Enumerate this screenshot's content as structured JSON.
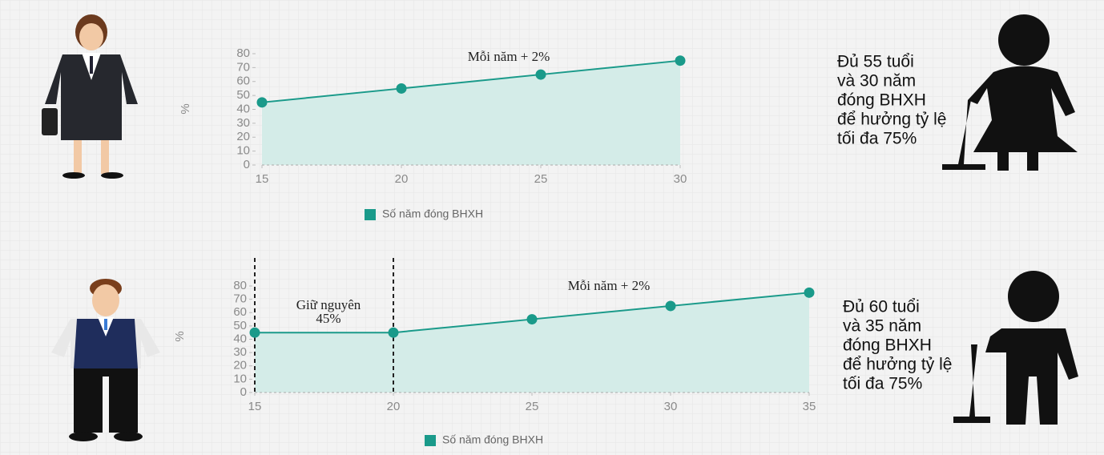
{
  "chart_data": [
    {
      "type": "line",
      "y_label": "%",
      "legend": "Số năm đóng BHXH",
      "color": "#1a9a8a",
      "x": [
        15,
        20,
        25,
        30
      ],
      "values": [
        45,
        55,
        65,
        75
      ],
      "xlim": [
        15,
        30
      ],
      "xticks": [
        15,
        20,
        25,
        30
      ],
      "ylim": [
        0,
        80
      ],
      "yticks": [
        0,
        10,
        20,
        30,
        40,
        50,
        60,
        70,
        80
      ],
      "annotations": [
        [
          "Mỗi năm + 2%"
        ]
      ],
      "side_text": [
        "Đủ 55 tuổi",
        "và 30 năm",
        "đóng BHXH",
        "để hưởng tỷ lệ",
        "tối đa 75%"
      ]
    },
    {
      "type": "line",
      "y_label": "%",
      "legend": "Số năm đóng BHXH",
      "color": "#1a9a8a",
      "x": [
        15,
        20,
        25,
        30,
        35
      ],
      "values": [
        45,
        45,
        55,
        65,
        75
      ],
      "xlim": [
        15,
        35
      ],
      "xticks": [
        15,
        20,
        25,
        30,
        35
      ],
      "ylim": [
        0,
        80
      ],
      "yticks": [
        0,
        10,
        20,
        30,
        40,
        50,
        60,
        70,
        80
      ],
      "vlines": [
        15,
        20
      ],
      "annotations": [
        [
          "Giữ nguyên",
          "45%"
        ],
        [
          "Mỗi năm + 2%"
        ]
      ],
      "side_text": [
        "Đủ 60 tuổi",
        "và 35 năm",
        "đóng BHXH",
        "để hưởng tỷ lệ",
        "tối đa 75%"
      ]
    }
  ]
}
